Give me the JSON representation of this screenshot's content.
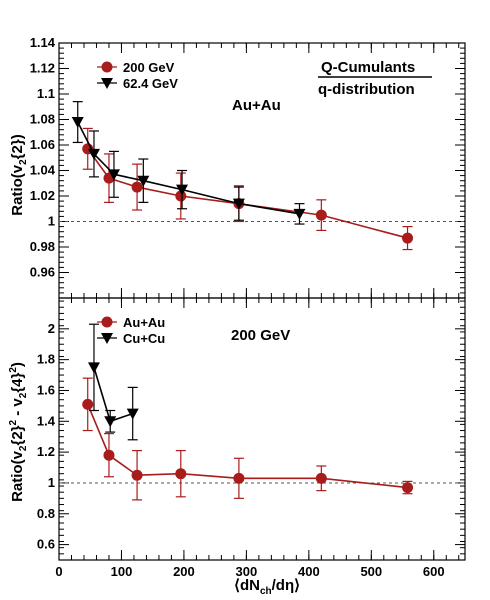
{
  "colors": {
    "red": "#a81c1c",
    "black": "#000000"
  },
  "chart_data": [
    {
      "type": "scatter",
      "ylabel": "Ratio(v{2})",
      "ylabel_sub": "2",
      "ylim": [
        0.94,
        1.14
      ],
      "xlim": [
        0,
        650
      ],
      "xticks": [
        0,
        100,
        200,
        300,
        400,
        500,
        600
      ],
      "yticks": [
        0.96,
        0.98,
        1,
        1.02,
        1.04,
        1.06,
        1.08,
        1.1,
        1.12,
        1.14
      ],
      "reference_line": 1,
      "annotations": {
        "system": "Au+Au",
        "method_top": "Q-Cumulants",
        "method_bottom": "q-distribution"
      },
      "series": [
        {
          "name": "200 GeV",
          "marker": "circle",
          "color": "#a81c1c",
          "x": [
            46,
            80,
            125,
            195,
            288,
            420,
            558
          ],
          "y": [
            1.057,
            1.034,
            1.027,
            1.02,
            1.014,
            1.005,
            0.987
          ],
          "yerr": [
            0.016,
            0.019,
            0.018,
            0.018,
            0.014,
            0.012,
            0.009
          ]
        },
        {
          "name": "62.4 GeV",
          "marker": "triangle-down",
          "color": "#000000",
          "x": [
            30,
            56,
            88,
            135,
            197,
            288,
            385
          ],
          "y": [
            1.078,
            1.053,
            1.037,
            1.032,
            1.025,
            1.014,
            1.006
          ],
          "yerr": [
            0.016,
            0.018,
            0.018,
            0.017,
            0.015,
            0.013,
            0.008
          ]
        }
      ]
    },
    {
      "type": "scatter",
      "ylabel": "Ratio(v{2} - v{4})",
      "ylim": [
        0.5,
        2.2
      ],
      "xlim": [
        0,
        650
      ],
      "xticks": [
        0,
        100,
        200,
        300,
        400,
        500,
        600
      ],
      "xtick_labels": [
        "0",
        "100",
        "200",
        "300",
        "400",
        "500",
        "600"
      ],
      "yticks": [
        0.6,
        0.8,
        1,
        1.2,
        1.4,
        1.6,
        1.8,
        2
      ],
      "xlabel": "⟨dN/dη⟩",
      "reference_line": 1,
      "annotations": {
        "energy": "200 GeV"
      },
      "series": [
        {
          "name": "Au+Au",
          "marker": "circle",
          "color": "#a81c1c",
          "x": [
            46,
            80,
            125,
            195,
            288,
            420,
            558
          ],
          "y": [
            1.51,
            1.18,
            1.05,
            1.06,
            1.03,
            1.03,
            0.97
          ],
          "yerr": [
            0.17,
            0.14,
            0.16,
            0.15,
            0.13,
            0.08,
            0.04
          ]
        },
        {
          "name": "Cu+Cu",
          "marker": "triangle-down",
          "color": "#000000",
          "x": [
            56,
            82,
            118
          ],
          "y": [
            1.75,
            1.4,
            1.45
          ],
          "yerr": [
            0.28,
            0.07,
            0.17
          ]
        }
      ]
    }
  ]
}
